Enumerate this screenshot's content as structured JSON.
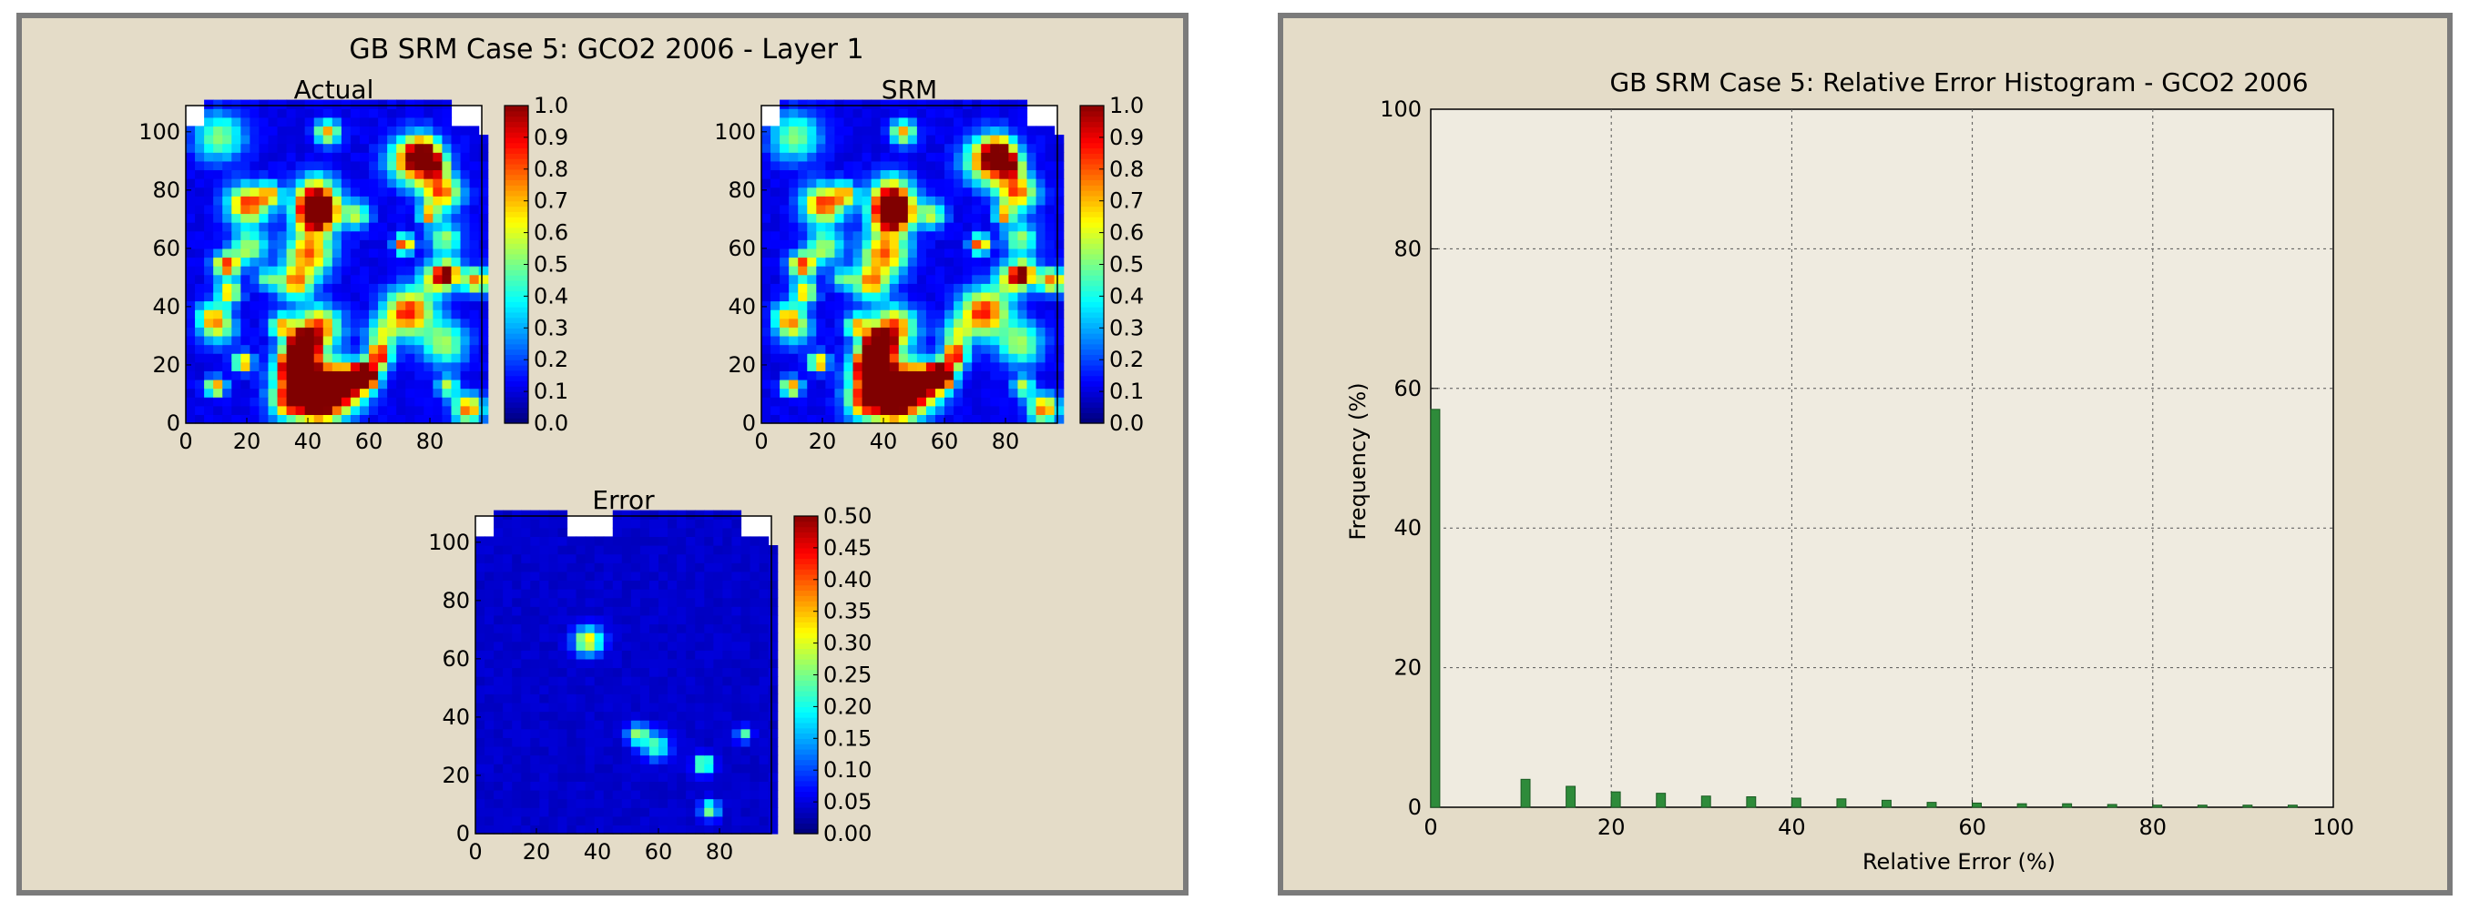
{
  "chart_data": [
    {
      "type": "heatmap",
      "figure_title": "GB SRM Case 5: GCO2 2006  - Layer 1",
      "subplots": [
        {
          "title": "Actual",
          "x_ticks": [
            "0",
            "20",
            "40",
            "60",
            "80"
          ],
          "y_ticks": [
            "0",
            "20",
            "40",
            "60",
            "80",
            "100"
          ],
          "xlim": [
            0,
            97
          ],
          "ylim": [
            0,
            109
          ],
          "colorbar": {
            "min": 0.0,
            "max": 1.0,
            "ticks": [
              "0.0",
              "0.1",
              "0.2",
              "0.3",
              "0.4",
              "0.5",
              "0.6",
              "0.7",
              "0.8",
              "0.9",
              "1.0"
            ]
          },
          "seed": 7
        },
        {
          "title": "SRM",
          "x_ticks": [
            "0",
            "20",
            "40",
            "60",
            "80"
          ],
          "y_ticks": [
            "0",
            "20",
            "40",
            "60",
            "80",
            "100"
          ],
          "xlim": [
            0,
            97
          ],
          "ylim": [
            0,
            109
          ],
          "colorbar": {
            "min": 0.0,
            "max": 1.0,
            "ticks": [
              "0.0",
              "0.1",
              "0.2",
              "0.3",
              "0.4",
              "0.5",
              "0.6",
              "0.7",
              "0.8",
              "0.9",
              "1.0"
            ]
          },
          "seed": 7
        },
        {
          "title": "Error",
          "x_ticks": [
            "0",
            "20",
            "40",
            "60",
            "80"
          ],
          "y_ticks": [
            "0",
            "20",
            "40",
            "60",
            "80",
            "100"
          ],
          "xlim": [
            0,
            97
          ],
          "ylim": [
            0,
            109
          ],
          "colorbar": {
            "min": 0.0,
            "max": 0.5,
            "ticks": [
              "0.00",
              "0.05",
              "0.10",
              "0.15",
              "0.20",
              "0.25",
              "0.30",
              "0.35",
              "0.40",
              "0.45",
              "0.50"
            ]
          },
          "seed": 11
        }
      ]
    },
    {
      "type": "bar",
      "title": "GB SRM Case 5: Relative Error Histogram - GCO2 2006",
      "xlabel": "Relative Error (%)",
      "ylabel": "Frequency (%)",
      "xlim": [
        0,
        100
      ],
      "ylim": [
        0,
        100
      ],
      "x_ticks": [
        "0",
        "20",
        "40",
        "60",
        "80",
        "100"
      ],
      "y_ticks": [
        "0",
        "20",
        "40",
        "60",
        "80",
        "100"
      ],
      "grid": true,
      "bar_color": "#2e8b3a",
      "x": [
        0,
        10,
        15,
        20,
        25,
        30,
        35,
        40,
        45,
        50,
        55,
        60,
        65,
        70,
        75,
        80,
        85,
        90,
        95
      ],
      "values": [
        57,
        4,
        3,
        2.2,
        2,
        1.6,
        1.5,
        1.3,
        1.2,
        1,
        0.7,
        0.6,
        0.5,
        0.5,
        0.4,
        0.3,
        0.3,
        0.3,
        0.3
      ]
    }
  ]
}
